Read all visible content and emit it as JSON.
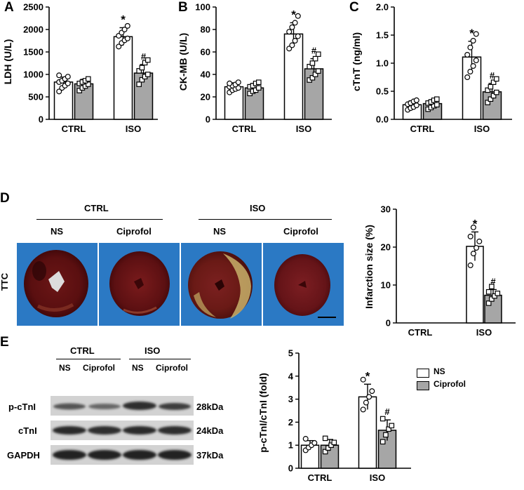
{
  "panels": {
    "a": "A",
    "b": "B",
    "c": "C",
    "d": "D",
    "e": "E"
  },
  "colors": {
    "ns": "#ffffff",
    "ciprofol": "#a6a6a6",
    "stroke": "#000000",
    "heart_bg": "#2a78c2"
  },
  "chart_data": [
    {
      "id": "ldh",
      "type": "bar",
      "ylabel": "LDH (U/L)",
      "ylim": [
        0,
        2500
      ],
      "yticks": [
        0,
        500,
        1000,
        1500,
        2000,
        2500
      ],
      "categories": [
        "CTRL",
        "ISO"
      ],
      "series": [
        {
          "values": [
            830,
            790
          ],
          "note": "NS"
        },
        {
          "values": [
            1840,
            1030
          ],
          "note": "Ciprofol"
        }
      ],
      "groups": [
        {
          "category": "CTRL",
          "bars": [
            {
              "value": 830,
              "err": 110,
              "points": [
                620,
                700,
                750,
                800,
                830,
                860,
                900,
                950,
                980
              ],
              "mark": ""
            },
            {
              "value": 790,
              "err": 100,
              "points": [
                640,
                700,
                740,
                780,
                800,
                830,
                860,
                900
              ],
              "mark": ""
            }
          ]
        },
        {
          "category": "ISO",
          "bars": [
            {
              "value": 1840,
              "err": 200,
              "points": [
                1620,
                1700,
                1760,
                1800,
                1860,
                1930,
                2000,
                2080
              ],
              "mark": "*"
            },
            {
              "value": 1030,
              "err": 190,
              "points": [
                780,
                880,
                950,
                1000,
                1080,
                1150,
                1260,
                1320
              ],
              "mark": "#"
            }
          ]
        }
      ]
    },
    {
      "id": "ckmb",
      "type": "bar",
      "ylabel": "CK-MB (U/L)",
      "ylim": [
        0,
        100
      ],
      "yticks": [
        0,
        20,
        40,
        60,
        80,
        100
      ],
      "categories": [
        "CTRL",
        "ISO"
      ],
      "groups": [
        {
          "category": "CTRL",
          "bars": [
            {
              "value": 29,
              "err": 3.5,
              "points": [
                24,
                26,
                27,
                28,
                29,
                30,
                31,
                33,
                32
              ],
              "mark": ""
            },
            {
              "value": 28,
              "err": 4,
              "points": [
                23,
                25,
                26,
                28,
                29,
                30,
                32,
                33
              ],
              "mark": ""
            }
          ]
        },
        {
          "category": "ISO",
          "bars": [
            {
              "value": 76,
              "err": 10,
              "points": [
                63,
                66,
                70,
                74,
                78,
                82,
                86,
                92
              ],
              "mark": "*"
            },
            {
              "value": 45,
              "err": 9,
              "points": [
                35,
                37,
                40,
                43,
                47,
                50,
                54,
                58
              ],
              "mark": "#"
            }
          ]
        }
      ]
    },
    {
      "id": "ctnt",
      "type": "bar",
      "ylabel": "cTnT (ng/ml)",
      "ylim": [
        0,
        2.0
      ],
      "yticks": [
        0.0,
        0.5,
        1.0,
        1.5,
        2.0
      ],
      "categories": [
        "CTRL",
        "ISO"
      ],
      "groups": [
        {
          "category": "CTRL",
          "bars": [
            {
              "value": 0.26,
              "err": 0.07,
              "points": [
                0.17,
                0.2,
                0.22,
                0.25,
                0.27,
                0.29,
                0.32,
                0.34
              ],
              "mark": ""
            },
            {
              "value": 0.28,
              "err": 0.07,
              "points": [
                0.18,
                0.21,
                0.24,
                0.26,
                0.29,
                0.31,
                0.34,
                0.36
              ],
              "mark": ""
            }
          ]
        },
        {
          "category": "ISO",
          "bars": [
            {
              "value": 1.11,
              "err": 0.28,
              "points": [
                0.75,
                0.85,
                0.95,
                1.05,
                1.15,
                1.28,
                1.4,
                1.52
              ],
              "mark": "*"
            },
            {
              "value": 0.49,
              "err": 0.15,
              "points": [
                0.3,
                0.36,
                0.42,
                0.48,
                0.52,
                0.58,
                0.66,
                0.72
              ],
              "mark": "#"
            }
          ]
        }
      ]
    },
    {
      "id": "infarct",
      "type": "bar",
      "ylabel": "Infarction size (%)",
      "ylim": [
        0,
        30
      ],
      "yticks": [
        0,
        10,
        20,
        30
      ],
      "categories": [
        "CTRL",
        "ISO"
      ],
      "groups": [
        {
          "category": "CTRL",
          "bars": [
            {
              "value": 0,
              "err": 0,
              "points": [],
              "mark": ""
            },
            {
              "value": 0,
              "err": 0,
              "points": [],
              "mark": ""
            }
          ]
        },
        {
          "category": "ISO",
          "bars": [
            {
              "value": 20.2,
              "err": 3.8,
              "points": [
                15.2,
                18.3,
                19.8,
                21.5,
                22.8,
                25.2
              ],
              "mark": "*"
            },
            {
              "value": 7.3,
              "err": 1.5,
              "points": [
                5.2,
                6.3,
                7.1,
                7.8,
                8.2,
                9.6
              ],
              "mark": "#"
            }
          ]
        }
      ]
    },
    {
      "id": "pctni",
      "type": "bar",
      "ylabel": "p-cTnI/cTnI (fold)",
      "ylim": [
        0,
        5
      ],
      "yticks": [
        0,
        1,
        2,
        3,
        4,
        5
      ],
      "categories": [
        "CTRL",
        "ISO"
      ],
      "groups": [
        {
          "category": "CTRL",
          "bars": [
            {
              "value": 1.0,
              "err": 0.2,
              "points": [
                0.78,
                0.9,
                1.0,
                1.1,
                1.28
              ],
              "mark": ""
            },
            {
              "value": 1.0,
              "err": 0.25,
              "points": [
                0.72,
                0.88,
                1.0,
                1.12,
                1.3
              ],
              "mark": ""
            }
          ]
        },
        {
          "category": "ISO",
          "bars": [
            {
              "value": 3.1,
              "err": 0.55,
              "points": [
                2.55,
                2.85,
                3.1,
                3.35,
                3.85
              ],
              "mark": "*"
            },
            {
              "value": 1.65,
              "err": 0.45,
              "points": [
                1.15,
                1.45,
                1.7,
                1.85,
                2.15
              ],
              "mark": "#"
            }
          ]
        }
      ]
    }
  ],
  "legend": {
    "ns": "NS",
    "ciprofol": "Ciprofol"
  },
  "ttc": {
    "row_label": "TTC",
    "group_ctrl": "CTRL",
    "group_iso": "ISO",
    "sub_ns_1": "NS",
    "sub_cip_1": "Ciprofol",
    "sub_ns_2": "NS",
    "sub_cip_2": "Ciprofol"
  },
  "western": {
    "group_ctrl": "CTRL",
    "group_iso": "ISO",
    "lanes": [
      "NS",
      "Ciprofol",
      "NS",
      "Ciprofol"
    ],
    "rows": [
      {
        "name": "p-cTnI",
        "kda": "28kDa"
      },
      {
        "name": "cTnI",
        "kda": "24kDa"
      },
      {
        "name": "GAPDH",
        "kda": "37kDa"
      }
    ]
  }
}
